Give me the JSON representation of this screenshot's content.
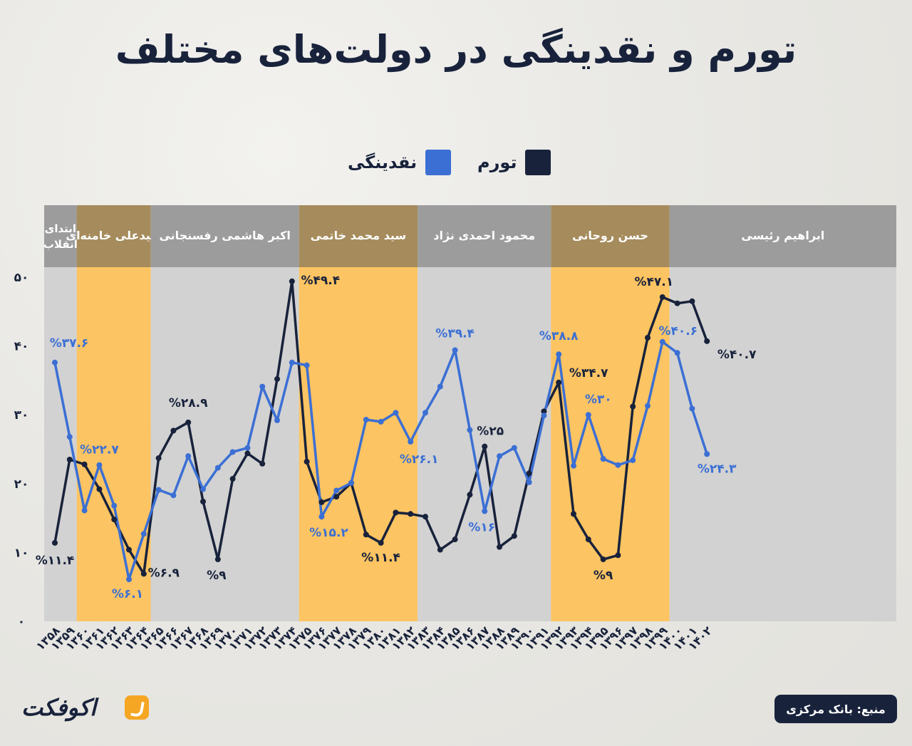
{
  "title": "تورم و نقدینگی در دولت‌های مختلف",
  "source": "منبع: بانک مرکزی",
  "logo_text": "اکوفکت",
  "colors": {
    "inflation": "#18223b",
    "liquidity": "#3b6fd4",
    "band_gray": "#d2d2d2",
    "band_orange": "#fcc462",
    "header_gray": "#9c9c9c",
    "header_gold": "#a68c5c"
  },
  "legend": [
    {
      "label": "تورم",
      "color": "#18223b"
    },
    {
      "label": "نقدینگی",
      "color": "#3b6fd4"
    }
  ],
  "chart_data": {
    "type": "line",
    "ylim": [
      0,
      50
    ],
    "yticks": [
      0,
      10,
      20,
      30,
      40,
      50
    ],
    "ytick_labels": [
      "۰",
      "۱۰",
      "۲۰",
      "۳۰",
      "۴۰",
      "۵۰"
    ],
    "categories": [
      "۱۳۵۸",
      "۱۳۵۹",
      "۱۳۶۰",
      "۱۳۶۱",
      "۱۳۶۲",
      "۱۳۶۳",
      "۱۳۶۴",
      "۱۳۶۵",
      "۱۳۶۶",
      "۱۳۶۷",
      "۱۳۶۸",
      "۱۳۶۹",
      "۱۳۷۰",
      "۱۳۷۱",
      "۱۳۷۲",
      "۱۳۷۳",
      "۱۳۷۴",
      "۱۳۷۵",
      "۱۳۷۶",
      "۱۳۷۷",
      "۱۳۷۸",
      "۱۳۷۹",
      "۱۳۸۰",
      "۱۳۸۱",
      "۱۳۸۲",
      "۱۳۸۳",
      "۱۳۸۴",
      "۱۳۸۵",
      "۱۳۸۶",
      "۱۳۸۷",
      "۱۳۸۸",
      "۱۳۸۹",
      "۱۳۹۰",
      "۱۳۹۱",
      "۱۳۹۲",
      "۱۳۹۳",
      "۱۳۹۴",
      "۱۳۹۵",
      "۱۳۹۶",
      "۱۳۹۷",
      "۱۳۹۸",
      "۱۳۹۹",
      "۱۴۰۰",
      "۱۴۰۱",
      "۱۴۰۲"
    ],
    "series": [
      {
        "name": "تورم",
        "color": "#18223b",
        "values": [
          11.4,
          23.5,
          22.8,
          19.2,
          14.8,
          10.4,
          6.9,
          23.7,
          27.7,
          28.9,
          17.4,
          9.0,
          20.7,
          24.4,
          22.9,
          35.2,
          49.4,
          23.2,
          17.3,
          18.1,
          20.1,
          12.6,
          11.4,
          15.8,
          15.6,
          15.2,
          10.4,
          11.9,
          18.4,
          25.4,
          10.8,
          12.4,
          21.5,
          30.5,
          34.7,
          15.6,
          11.9,
          9.0,
          9.6,
          31.2,
          41.2,
          47.1,
          46.2,
          46.5,
          40.7
        ]
      },
      {
        "name": "نقدینگی",
        "color": "#3b6fd4",
        "values": [
          37.6,
          26.8,
          16.1,
          22.7,
          16.8,
          6.1,
          12.7,
          19.1,
          18.3,
          24.0,
          19.2,
          22.3,
          24.6,
          25.2,
          34.1,
          29.2,
          37.6,
          37.2,
          15.2,
          19.0,
          20.1,
          29.3,
          29.0,
          30.3,
          26.1,
          30.3,
          34.1,
          39.4,
          27.8,
          16.0,
          24.0,
          25.2,
          20.2,
          29.9,
          38.8,
          22.6,
          30.0,
          23.6,
          22.7,
          23.4,
          31.3,
          40.6,
          39.0,
          30.9,
          24.3
        ]
      }
    ],
    "annotations": [
      {
        "series": 0,
        "index": 0,
        "text": "%۱۱.۴"
      },
      {
        "series": 0,
        "index": 6,
        "text": "%۶.۹"
      },
      {
        "series": 0,
        "index": 9,
        "text": "%۲۸.۹"
      },
      {
        "series": 0,
        "index": 11,
        "text": "%۹"
      },
      {
        "series": 0,
        "index": 16,
        "text": "%۴۹.۴"
      },
      {
        "series": 0,
        "index": 22,
        "text": "%۱۱.۴"
      },
      {
        "series": 0,
        "index": 29,
        "text": "%۲۵"
      },
      {
        "series": 0,
        "index": 34,
        "text": "%۳۴.۷"
      },
      {
        "series": 0,
        "index": 37,
        "text": "%۹"
      },
      {
        "series": 0,
        "index": 41,
        "text": "%۴۷.۱"
      },
      {
        "series": 0,
        "index": 44,
        "text": "%۴۰.۷"
      },
      {
        "series": 1,
        "index": 0,
        "text": "%۳۷.۶"
      },
      {
        "series": 1,
        "index": 3,
        "text": "%۲۲.۷"
      },
      {
        "series": 1,
        "index": 5,
        "text": "%۶.۱"
      },
      {
        "series": 1,
        "index": 18,
        "text": "%۱۵.۲"
      },
      {
        "series": 1,
        "index": 24,
        "text": "%۲۶.۱"
      },
      {
        "series": 1,
        "index": 27,
        "text": "%۳۹.۴"
      },
      {
        "series": 1,
        "index": 29,
        "text": "%۱۶"
      },
      {
        "series": 1,
        "index": 34,
        "text": "%۳۸.۸"
      },
      {
        "series": 1,
        "index": 36,
        "text": "%۳۰"
      },
      {
        "series": 1,
        "index": 41,
        "text": "%۴۰.۶"
      },
      {
        "series": 1,
        "index": 44,
        "text": "%۲۴.۳"
      }
    ],
    "governments": [
      {
        "name": "ابتدای انقلاب",
        "from": "۱۳۵۸",
        "to": "۱۳۵۹",
        "style": "gray"
      },
      {
        "name": "سیدعلی خامنه‌ای",
        "from": "۱۳۶۰",
        "to": "۱۳۶۴",
        "style": "orange"
      },
      {
        "name": "اکبر هاشمی رفسنجانی",
        "from": "۱۳۶۵",
        "to": "۱۳۷۴",
        "style": "gray"
      },
      {
        "name": "سید محمد خاتمی",
        "from": "۱۳۷۵",
        "to": "۱۳۸۲",
        "style": "orange"
      },
      {
        "name": "محمود احمدی نژاد",
        "from": "۱۳۸۳",
        "to": "۱۳۹۱",
        "style": "gray"
      },
      {
        "name": "حسن روحانی",
        "from": "۱۳۹۲",
        "to": "۱۳۹۹",
        "style": "orange"
      },
      {
        "name": "ابراهیم رئیسی",
        "from": "۱۴۰۰",
        "to": "۱۴۰۲",
        "style": "gray"
      }
    ]
  }
}
